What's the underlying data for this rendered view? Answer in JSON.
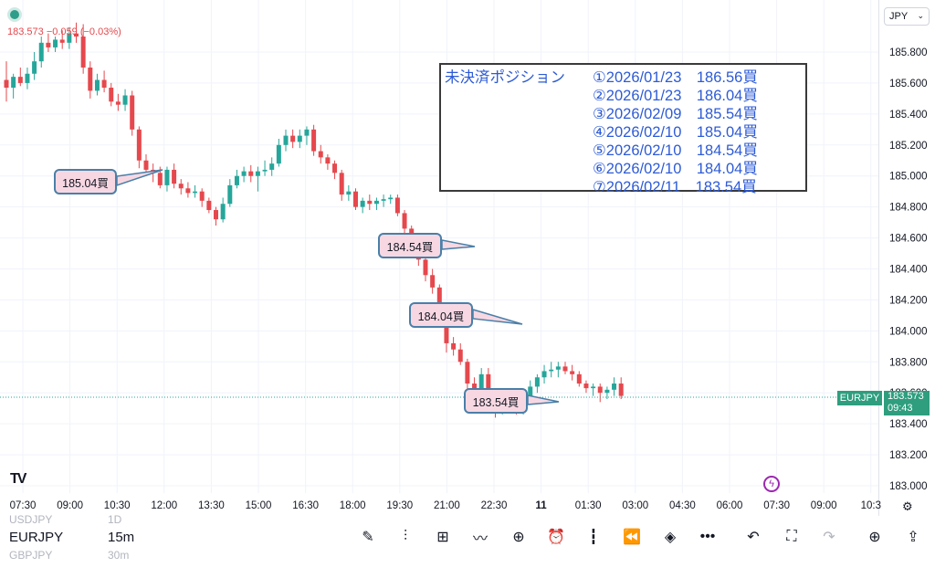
{
  "header": {
    "ohlc_text": "183.573  −0.059 (−0.03%)",
    "currency": "JPY"
  },
  "chart_data": {
    "type": "candlestick",
    "symbol": "EURJPY",
    "timeframe": "15m",
    "ylim": [
      182.95,
      186.05
    ],
    "y_ticks": [
      185.8,
      185.6,
      185.4,
      185.2,
      185.0,
      184.8,
      184.6,
      184.4,
      184.2,
      184.0,
      183.8,
      183.6,
      183.4,
      183.2,
      183.0
    ],
    "x_ticks": [
      "07:30",
      "09:00",
      "10:30",
      "12:00",
      "13:30",
      "15:00",
      "16:30",
      "18:00",
      "19:30",
      "21:00",
      "22:30",
      "11",
      "01:30",
      "03:00",
      "04:30",
      "06:00",
      "07:30",
      "09:00",
      "10:3"
    ],
    "last_price": 183.573,
    "candles": [
      [
        185.62,
        185.74,
        185.48,
        185.57
      ],
      [
        185.57,
        185.66,
        185.5,
        185.64
      ],
      [
        185.64,
        185.7,
        185.58,
        185.6
      ],
      [
        185.6,
        185.7,
        185.56,
        185.66
      ],
      [
        185.66,
        185.8,
        185.62,
        185.74
      ],
      [
        185.74,
        185.9,
        185.7,
        185.86
      ],
      [
        185.86,
        185.92,
        185.8,
        185.83
      ],
      [
        185.83,
        185.9,
        185.8,
        185.88
      ],
      [
        185.88,
        185.94,
        185.82,
        185.86
      ],
      [
        185.86,
        185.96,
        185.82,
        185.92
      ],
      [
        185.92,
        185.99,
        185.86,
        185.9
      ],
      [
        185.9,
        185.98,
        185.66,
        185.7
      ],
      [
        185.7,
        185.74,
        185.5,
        185.55
      ],
      [
        185.55,
        185.66,
        185.52,
        185.62
      ],
      [
        185.62,
        185.68,
        185.54,
        185.57
      ],
      [
        185.57,
        185.6,
        185.45,
        185.48
      ],
      [
        185.48,
        185.53,
        185.42,
        185.46
      ],
      [
        185.46,
        185.56,
        185.42,
        185.52
      ],
      [
        185.52,
        185.55,
        185.26,
        185.3
      ],
      [
        185.3,
        185.32,
        185.05,
        185.1
      ],
      [
        185.1,
        185.14,
        185.0,
        185.04
      ],
      [
        185.04,
        185.08,
        184.96,
        185.02
      ],
      [
        185.02,
        185.06,
        184.92,
        184.94
      ],
      [
        184.94,
        185.06,
        184.9,
        185.04
      ],
      [
        185.04,
        185.08,
        184.92,
        184.95
      ],
      [
        184.95,
        184.98,
        184.88,
        184.92
      ],
      [
        184.92,
        184.96,
        184.86,
        184.89
      ],
      [
        184.89,
        184.94,
        184.86,
        184.9
      ],
      [
        184.9,
        184.92,
        184.8,
        184.84
      ],
      [
        184.84,
        184.86,
        184.76,
        184.78
      ],
      [
        184.78,
        184.8,
        184.68,
        184.72
      ],
      [
        184.72,
        184.86,
        184.7,
        184.82
      ],
      [
        184.82,
        184.98,
        184.8,
        184.94
      ],
      [
        184.94,
        185.04,
        184.92,
        185.0
      ],
      [
        185.0,
        185.06,
        184.96,
        185.03
      ],
      [
        185.03,
        185.07,
        184.96,
        185.0
      ],
      [
        185.0,
        185.06,
        184.9,
        185.03
      ],
      [
        185.03,
        185.1,
        185.0,
        185.04
      ],
      [
        185.04,
        185.12,
        185.0,
        185.08
      ],
      [
        185.08,
        185.24,
        185.06,
        185.2
      ],
      [
        185.2,
        185.3,
        185.16,
        185.26
      ],
      [
        185.26,
        185.3,
        185.18,
        185.22
      ],
      [
        185.22,
        185.3,
        185.18,
        185.26
      ],
      [
        185.26,
        185.32,
        185.2,
        185.3
      ],
      [
        185.3,
        185.33,
        185.13,
        185.16
      ],
      [
        185.16,
        185.2,
        185.08,
        185.12
      ],
      [
        185.12,
        185.14,
        185.04,
        185.08
      ],
      [
        185.08,
        185.1,
        184.98,
        185.02
      ],
      [
        185.02,
        185.04,
        184.84,
        184.88
      ],
      [
        184.88,
        184.94,
        184.84,
        184.9
      ],
      [
        184.9,
        184.92,
        184.78,
        184.8
      ],
      [
        184.8,
        184.86,
        184.76,
        184.84
      ],
      [
        184.84,
        184.88,
        184.78,
        184.82
      ],
      [
        184.82,
        184.86,
        184.78,
        184.84
      ],
      [
        184.84,
        184.88,
        184.8,
        184.85
      ],
      [
        184.85,
        184.88,
        184.82,
        184.86
      ],
      [
        184.86,
        184.88,
        184.74,
        184.76
      ],
      [
        184.76,
        184.78,
        184.62,
        184.66
      ],
      [
        184.66,
        184.68,
        184.52,
        184.56
      ],
      [
        184.56,
        184.58,
        184.42,
        184.46
      ],
      [
        184.46,
        184.48,
        184.32,
        184.36
      ],
      [
        184.36,
        184.4,
        184.24,
        184.28
      ],
      [
        184.28,
        184.3,
        184.08,
        184.14
      ],
      [
        184.14,
        184.16,
        183.86,
        183.92
      ],
      [
        183.92,
        183.96,
        183.84,
        183.88
      ],
      [
        183.88,
        183.92,
        183.78,
        183.8
      ],
      [
        183.8,
        183.82,
        183.62,
        183.66
      ],
      [
        183.66,
        183.7,
        183.48,
        183.52
      ],
      [
        183.52,
        183.76,
        183.48,
        183.72
      ],
      [
        183.72,
        183.76,
        183.52,
        183.56
      ],
      [
        183.56,
        183.58,
        183.44,
        183.5
      ],
      [
        183.5,
        183.56,
        183.46,
        183.54
      ],
      [
        183.54,
        183.58,
        183.48,
        183.52
      ],
      [
        183.52,
        183.56,
        183.46,
        183.5
      ],
      [
        183.5,
        183.58,
        183.46,
        183.56
      ],
      [
        183.56,
        183.68,
        183.54,
        183.64
      ],
      [
        183.64,
        183.72,
        183.6,
        183.7
      ],
      [
        183.7,
        183.78,
        183.66,
        183.74
      ],
      [
        183.74,
        183.8,
        183.7,
        183.75
      ],
      [
        183.75,
        183.8,
        183.7,
        183.77
      ],
      [
        183.77,
        183.8,
        183.72,
        183.74
      ],
      [
        183.74,
        183.78,
        183.68,
        183.72
      ],
      [
        183.72,
        183.74,
        183.64,
        183.66
      ],
      [
        183.66,
        183.68,
        183.6,
        183.63
      ],
      [
        183.63,
        183.66,
        183.58,
        183.64
      ],
      [
        183.64,
        183.66,
        183.54,
        183.6
      ],
      [
        183.6,
        183.64,
        183.56,
        183.62
      ],
      [
        183.62,
        183.7,
        183.58,
        183.66
      ],
      [
        183.66,
        183.7,
        183.56,
        183.58
      ]
    ]
  },
  "positions": {
    "title": "未決済ポジション",
    "items": [
      "①2026/01/23　186.56買",
      "②2026/01/23　186.04買",
      "③2026/02/09　185.54買",
      "④2026/02/10　185.04買",
      "⑤2026/02/10　184.54買",
      "⑥2026/02/10　184.04買",
      "⑦2026/02/11　183.54買"
    ]
  },
  "callouts": [
    "185.04買",
    "184.54買",
    "184.04買",
    "183.54買"
  ],
  "price_tag": {
    "symbol": "EURJPY",
    "price": "183.573",
    "countdown": "09:43"
  },
  "bottom": {
    "symbols": {
      "prev": "USDJPY",
      "current": "EURJPY",
      "next": "GBPJPY"
    },
    "timeframes": {
      "prev": "1D",
      "current": "15m",
      "next": "30m"
    }
  },
  "colors": {
    "up": "#26a69a",
    "down": "#e5484d",
    "grid": "#f0f3fa"
  }
}
